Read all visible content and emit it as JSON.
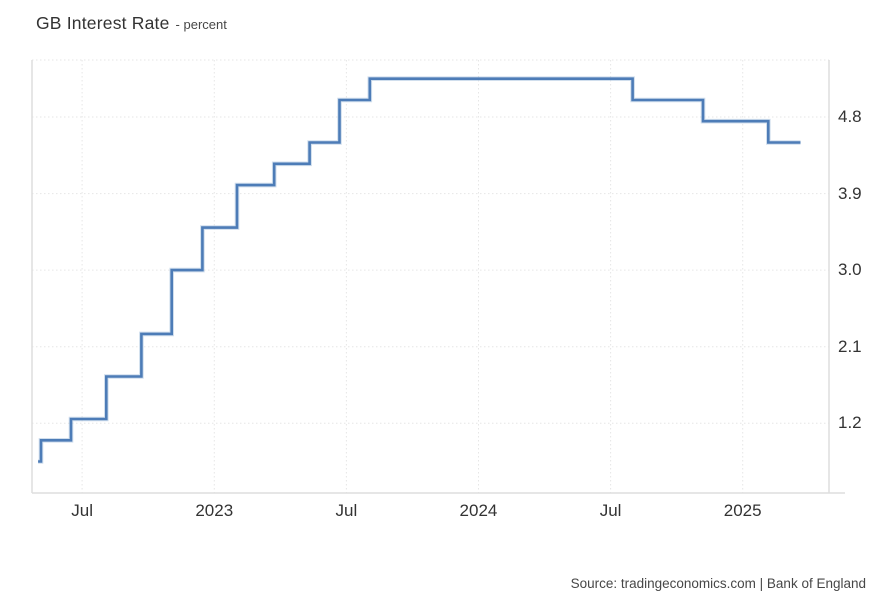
{
  "title": {
    "main": "GB Interest Rate",
    "suffix": "- percent"
  },
  "source": "Source: tradingeconomics.com | Bank of England",
  "colors": {
    "line": "#4d7cb7",
    "line_halo": "#a9c2de",
    "grid": "#e6e6e6",
    "border": "#dedede",
    "text": "#333333",
    "muted_text": "#474747",
    "background": "#ffffff"
  },
  "chart_data": {
    "type": "line",
    "subtype": "step-after",
    "title": "GB Interest Rate",
    "ylabel": "percent",
    "xlabel": "",
    "grid": "dotted",
    "legend_position": "none",
    "ylim": [
      0.38,
      5.47
    ],
    "xlim": [
      "2022-04-23",
      "2025-04-29"
    ],
    "y_ticks": [
      1.2,
      2.1,
      3.0,
      3.9,
      4.8
    ],
    "x_ticks": [
      {
        "label": "Jul",
        "date": "2022-07-01"
      },
      {
        "label": "2023",
        "date": "2023-01-01"
      },
      {
        "label": "Jul",
        "date": "2023-07-01"
      },
      {
        "label": "2024",
        "date": "2024-01-01"
      },
      {
        "label": "Jul",
        "date": "2024-07-01"
      },
      {
        "label": "2025",
        "date": "2025-01-01"
      }
    ],
    "series": [
      {
        "name": "GB Interest Rate (percent)",
        "points": [
          {
            "date": "2022-05-01",
            "value": 0.75
          },
          {
            "date": "2022-05-05",
            "value": 1.0
          },
          {
            "date": "2022-06-16",
            "value": 1.25
          },
          {
            "date": "2022-08-04",
            "value": 1.75
          },
          {
            "date": "2022-09-22",
            "value": 2.25
          },
          {
            "date": "2022-11-03",
            "value": 3.0
          },
          {
            "date": "2022-12-15",
            "value": 3.5
          },
          {
            "date": "2023-02-02",
            "value": 4.0
          },
          {
            "date": "2023-03-23",
            "value": 4.25
          },
          {
            "date": "2023-05-11",
            "value": 4.5
          },
          {
            "date": "2023-06-22",
            "value": 5.0
          },
          {
            "date": "2023-08-03",
            "value": 5.25
          },
          {
            "date": "2024-08-01",
            "value": 5.0
          },
          {
            "date": "2024-11-07",
            "value": 4.75
          },
          {
            "date": "2025-02-06",
            "value": 4.5
          },
          {
            "date": "2025-03-20",
            "value": 4.5
          }
        ]
      }
    ]
  }
}
